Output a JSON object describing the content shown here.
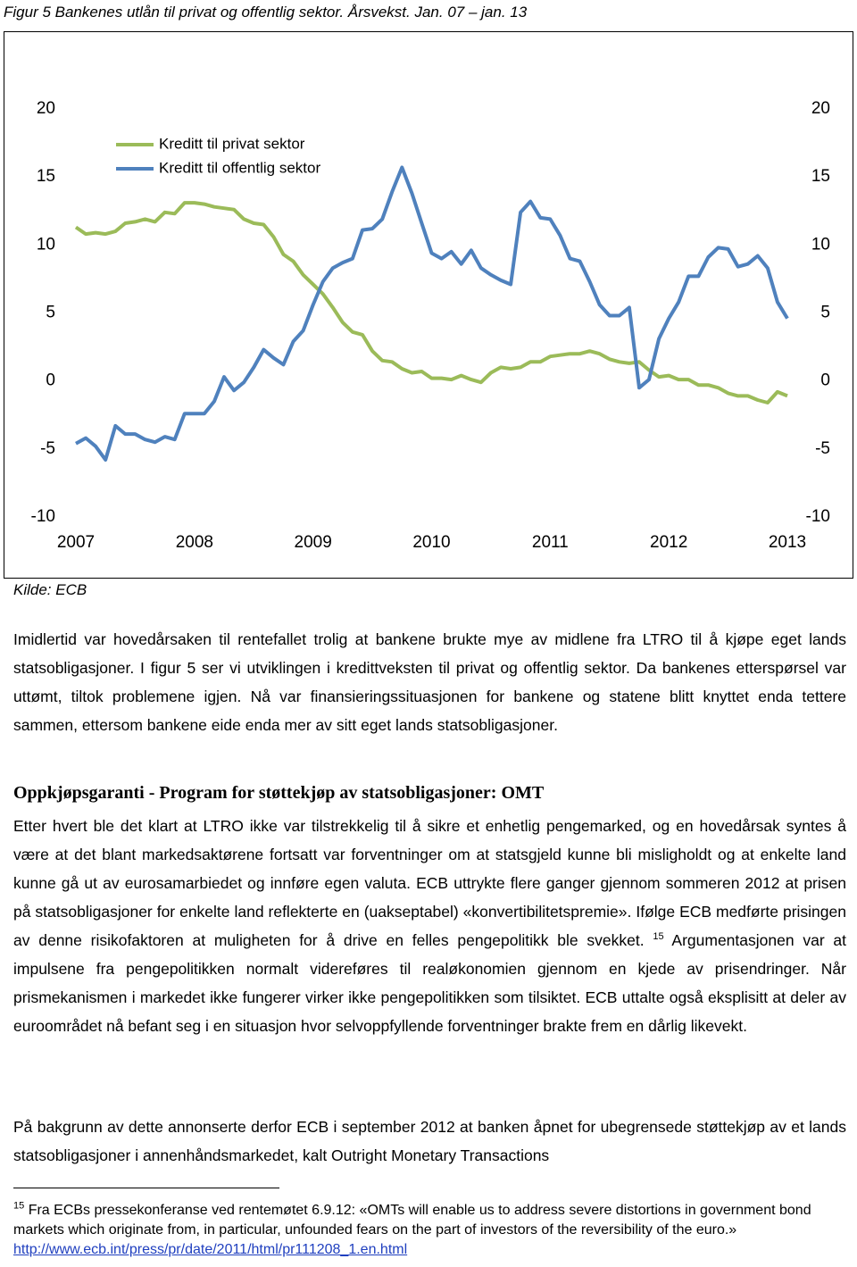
{
  "document": {
    "caption": "Figur 5  Bankenes utlån til privat og offentlig sektor. Årsvekst. Jan. 07 – jan. 13",
    "source": "Kilde: ECB",
    "paragraph1": "Imidlertid var hovedårsaken til rentefallet trolig at bankene brukte mye av midlene fra LTRO til å kjøpe eget lands statsobligasjoner. I figur 5 ser vi utviklingen i kredittveksten til privat og offentlig sektor. Da bankenes etterspørsel var uttømt, tiltok problemene igjen. Nå var finansieringssituasjonen for bankene og statene blitt knyttet enda tettere sammen, ettersom bankene eide enda mer av sitt eget lands statsobligasjoner.",
    "heading": "Oppkjøpsgaranti - Program for støttekjøp av statsobligasjoner: OMT",
    "paragraph2_start": "Etter hvert ble det klart at LTRO ikke var tilstrekkelig til å sikre et enhetlig pengemarked, og en hovedårsak syntes å være at det blant markedsaktørene fortsatt var forventninger om at statsgjeld kunne bli misligholdt og at enkelte land kunne gå ut av eurosamarbiedet og innføre egen valuta. ECB uttrykte flere ganger gjennom sommeren 2012 at prisen på statsobligasjoner for enkelte land reflekterte en (uakseptabel) «konvertibilitetspremie». Ifølge ECB medførte prisingen av denne risikofaktoren at muligheten for å drive en felles pengepolitikk ble svekket.",
    "footnote_ref": "15",
    "paragraph2_end": "Argumentasjonen var at impulsene fra pengepolitikken normalt videreføres til realøkonomien gjennom en kjede av prisendringer. Når  prismekanismen i markedet ikke fungerer virker ikke pengepolitikken som tilsiktet. ECB uttalte også eksplisitt at deler av euroområdet nå befant seg i en situasjon hvor selvoppfyllende forventninger brakte frem en dårlig likevekt.",
    "paragraph3": "På bakgrunn av dette annonserte derfor ECB i september 2012 at banken åpnet for ubegrensede støttekjøp av et lands statsobligasjoner i annenhåndsmarkedet, kalt Outright Monetary Transactions",
    "footnote_number": "15",
    "footnote_text": "Fra ECBs pressekonferanse ved rentemøtet 6.9.12: «OMTs will enable us to address severe distortions in government bond markets which originate from, in particular, unfounded fears on the part of investors of the reversibility of the euro.»",
    "footnote_link": "http://www.ecb.int/press/pr/date/2011/html/pr111208_1.en.html"
  },
  "chart_data": {
    "type": "line",
    "categories": [
      "2007",
      null,
      null,
      null,
      null,
      null,
      null,
      null,
      null,
      null,
      null,
      null,
      "2008",
      null,
      null,
      null,
      null,
      null,
      null,
      null,
      null,
      null,
      null,
      null,
      "2009",
      null,
      null,
      null,
      null,
      null,
      null,
      null,
      null,
      null,
      null,
      null,
      "2010",
      null,
      null,
      null,
      null,
      null,
      null,
      null,
      null,
      null,
      null,
      null,
      "2011",
      null,
      null,
      null,
      null,
      null,
      null,
      null,
      null,
      null,
      null,
      null,
      "2012",
      null,
      null,
      null,
      null,
      null,
      null,
      null,
      null,
      null,
      null,
      null,
      "2013"
    ],
    "series": [
      {
        "name": "Kreditt til privat sektor",
        "color": "#9bbb59",
        "values": [
          11.3,
          10.8,
          10.9,
          10.8,
          11.0,
          11.6,
          11.7,
          11.9,
          11.7,
          12.4,
          12.3,
          13.1,
          13.1,
          13.0,
          12.8,
          12.7,
          12.6,
          11.9,
          11.6,
          11.5,
          10.6,
          9.3,
          8.8,
          7.8,
          7.1,
          6.4,
          5.4,
          4.3,
          3.6,
          3.4,
          2.2,
          1.5,
          1.4,
          0.9,
          0.6,
          0.7,
          0.2,
          0.2,
          0.1,
          0.4,
          0.1,
          -0.1,
          0.6,
          1.0,
          0.9,
          1.0,
          1.4,
          1.4,
          1.8,
          1.9,
          2.0,
          2.0,
          2.2,
          2.0,
          1.6,
          1.4,
          1.3,
          1.4,
          0.8,
          0.3,
          0.4,
          0.1,
          0.1,
          -0.3,
          -0.3,
          -0.5,
          -0.9,
          -1.1,
          -1.1,
          -1.4,
          -1.6,
          -0.8,
          -1.1
        ]
      },
      {
        "name": "Kreditt til offentlig sektor",
        "color": "#4f81bd",
        "values": [
          -4.6,
          -4.2,
          -4.8,
          -5.8,
          -3.3,
          -3.9,
          -3.9,
          -4.3,
          -4.5,
          -4.1,
          -4.3,
          -2.4,
          -2.4,
          -2.4,
          -1.5,
          0.3,
          -0.7,
          -0.1,
          1.0,
          2.3,
          1.7,
          1.2,
          2.9,
          3.7,
          5.6,
          7.3,
          8.3,
          8.7,
          9.0,
          11.1,
          11.2,
          11.9,
          13.9,
          15.7,
          13.8,
          11.6,
          9.4,
          9.0,
          9.5,
          8.6,
          9.6,
          8.3,
          7.8,
          7.4,
          7.1,
          12.4,
          13.2,
          12.0,
          11.9,
          10.7,
          9.0,
          8.8,
          7.3,
          5.6,
          4.8,
          4.8,
          5.4,
          -0.5,
          0.1,
          3.1,
          4.6,
          5.8,
          7.7,
          7.7,
          9.1,
          9.8,
          9.7,
          8.4,
          8.6,
          9.2,
          8.3,
          5.8,
          4.6
        ]
      }
    ],
    "ylim": [
      -10,
      20
    ],
    "yticks": [
      -10,
      -5,
      0,
      5,
      10,
      15,
      20
    ],
    "y2lim": [
      -10,
      20
    ],
    "y2ticks": [
      -10,
      -5,
      0,
      5,
      10,
      15,
      20
    ],
    "grid": false,
    "legend": "top-left"
  }
}
